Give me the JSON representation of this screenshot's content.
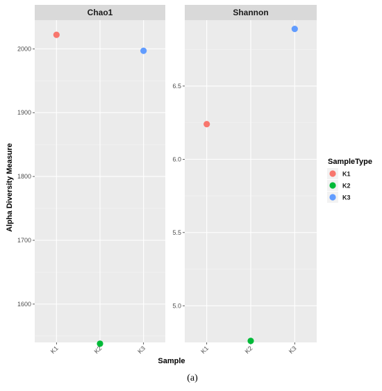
{
  "chart_data": {
    "type": "scatter",
    "xlabel": "Sample",
    "ylabel": "Alpha Diversity Measure",
    "legend": {
      "title": "SampleType",
      "placement": "right",
      "entries": [
        {
          "label": "K1",
          "color": "#F8766D"
        },
        {
          "label": "K2",
          "color": "#00BA38"
        },
        {
          "label": "K3",
          "color": "#619CFF"
        }
      ]
    },
    "categories": [
      "K1",
      "K2",
      "K3"
    ],
    "grid": true,
    "panels": [
      {
        "title": "Chao1",
        "ylim": [
          1540,
          2045
        ],
        "yticks": [
          1600,
          1700,
          1800,
          1900,
          2000
        ],
        "values": [
          2022,
          1538,
          1997
        ]
      },
      {
        "title": "Shannon",
        "ylim": [
          4.75,
          6.95
        ],
        "yticks": [
          5.0,
          5.5,
          6.0,
          6.5
        ],
        "ytick_labels": [
          "5.0",
          "5.5",
          "6.0",
          "6.5"
        ],
        "values": [
          6.24,
          4.76,
          6.89
        ]
      }
    ]
  },
  "caption": "(a)"
}
